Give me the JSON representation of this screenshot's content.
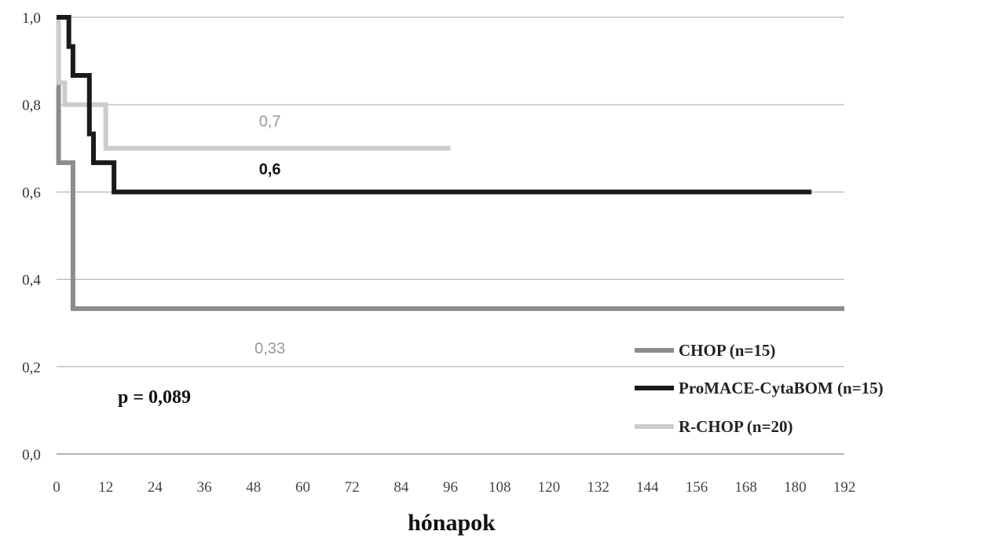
{
  "chart_data": {
    "type": "line",
    "step": true,
    "xlabel": "hónapok",
    "ylabel": "",
    "xlim": [
      0,
      192
    ],
    "ylim": [
      0,
      1
    ],
    "x_ticks": [
      "0",
      "12",
      "24",
      "36",
      "48",
      "60",
      "72",
      "84",
      "96",
      "108",
      "120",
      "132",
      "144",
      "156",
      "168",
      "180",
      "192"
    ],
    "y_ticks": [
      "0,0",
      "0,2",
      "0,4",
      "0,6",
      "0,8",
      "1,0"
    ],
    "grid": "horizontal",
    "legend_position": "bottom-right",
    "series": [
      {
        "name": "CHOP (n=15)",
        "color": "#8c8c8c",
        "x": [
          0,
          0.5,
          4,
          192
        ],
        "y": [
          0.84,
          0.667,
          0.333,
          0.333
        ]
      },
      {
        "name": "ProMACE-CytaBOM (n=15)",
        "color": "#1a1a1a",
        "x": [
          0,
          3,
          4,
          8,
          9,
          10,
          14,
          184
        ],
        "y": [
          1.0,
          0.933,
          0.867,
          0.733,
          0.667,
          0.667,
          0.6,
          0.6
        ]
      },
      {
        "name": "R-CHOP (n=20)",
        "color": "#cccccc",
        "x": [
          0,
          0.5,
          2,
          12,
          96
        ],
        "y": [
          1.0,
          0.85,
          0.8,
          0.7,
          0.7
        ]
      }
    ],
    "annotations": [
      {
        "text": "0,7",
        "x": 52,
        "y": 0.75,
        "color": "#999999",
        "bold": false
      },
      {
        "text": "0,6",
        "x": 52,
        "y": 0.64,
        "color": "#111111",
        "bold": true
      },
      {
        "text": "0,33",
        "x": 52,
        "y": 0.23,
        "color": "#999999",
        "bold": false
      }
    ],
    "p_value": "p = 0,089"
  }
}
